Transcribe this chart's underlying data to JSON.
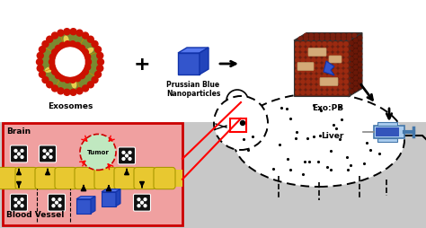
{
  "bg_color": "#c8c8c8",
  "label_exosome": "Exosomes",
  "label_pb": "Prussian Blue\nNanoparticles",
  "label_exopb": "Exo:PB",
  "label_brain": "Brain",
  "label_blood": "Blood Vessel",
  "label_tumor": "Tumor",
  "label_liver": "Liver",
  "pb_color": "#3355cc",
  "exopb_bg": "#6b2010",
  "brain_bg": "#f0a0a0",
  "vessel_color": "#e8c830",
  "dice_color": "#111111",
  "tumor_color": "#c0e8c0",
  "font_size_label": 6.5,
  "font_size_small": 5.5,
  "white": "#ffffff",
  "black": "#000000",
  "red": "#cc0000"
}
